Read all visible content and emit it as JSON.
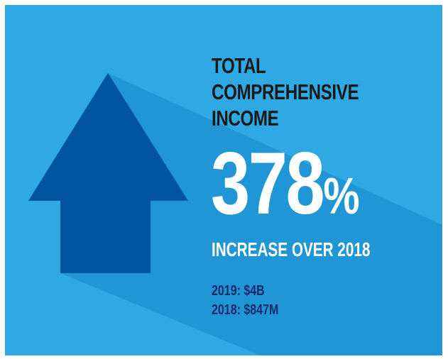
{
  "headline": {
    "line1": "TOTAL",
    "line2": "COMPREHENSIVE",
    "line3": "INCOME"
  },
  "percentage": {
    "value": "378",
    "symbol": "%"
  },
  "subheadline": "INCREASE OVER 2018",
  "stats": [
    {
      "label": "2019:",
      "value": "$4B"
    },
    {
      "label": "2018:",
      "value": "$847M"
    }
  ],
  "colors": {
    "background": "#2ea9e3",
    "shadow": "#2196d6",
    "arrow": "#0054a0",
    "title": "#1a1a1a",
    "stats": "#1b2a6b"
  },
  "icons": [
    "up-arrow-icon"
  ]
}
